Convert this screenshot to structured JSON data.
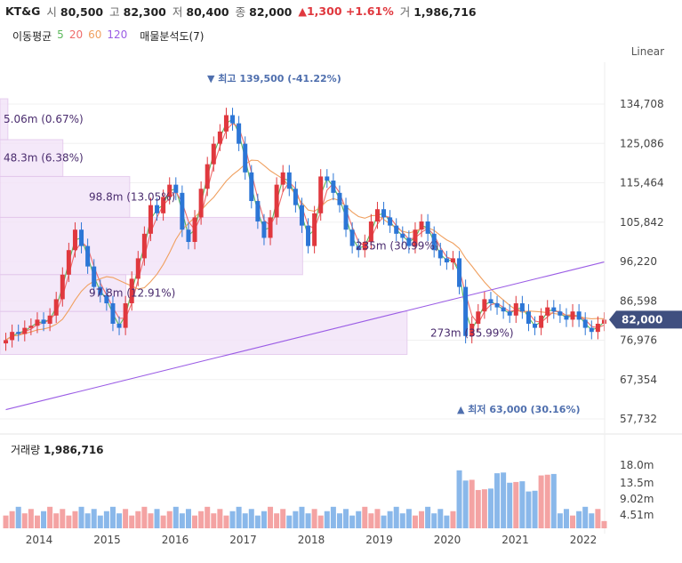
{
  "header": {
    "name": "KT&G",
    "open_label": "시",
    "open": "80,500",
    "high_label": "고",
    "high": "82,300",
    "low_label": "저",
    "low": "80,400",
    "close_label": "종",
    "close": "82,000",
    "change": "▲1,300 +1.61%",
    "vol_label": "거",
    "volume": "1,986,716"
  },
  "indicators": {
    "ma_label": "이동평균",
    "ma5": "5",
    "ma20": "20",
    "ma60": "60",
    "ma120": "120",
    "vp_label": "매물분석도(7)"
  },
  "scale_mode": "Linear",
  "colors": {
    "up": "#e0383e",
    "down": "#2c76d6",
    "ma5": "#5cb85c",
    "ma20": "#ef6b6b",
    "ma60": "#f0a060",
    "ma120": "#9b5de5",
    "badge": "#3f4f7f"
  },
  "chart_data": {
    "type": "candlestick",
    "interval": "monthly",
    "y_ticks": [
      "134,708",
      "125,086",
      "115,464",
      "105,842",
      "96,220",
      "86,598",
      "76,976",
      "67,354",
      "57,732"
    ],
    "y_range": [
      57732,
      134708
    ],
    "x_ticks": [
      "2014",
      "2015",
      "2016",
      "2017",
      "2018",
      "2019",
      "2020",
      "2021",
      "2022"
    ],
    "last_price": "82,000",
    "high_annotation": "최고 139,500 (-41.22%)",
    "low_annotation": "최저 63,000 (30.16%)",
    "volume_profile": [
      {
        "label": "5.06m (0.67%)",
        "lo": 126000,
        "hi": 136000,
        "frac": 0.02
      },
      {
        "label": "48.3m (6.38%)",
        "lo": 117000,
        "hi": 126000,
        "frac": 0.16
      },
      {
        "label": "98.8m (13.05%)",
        "lo": 107000,
        "hi": 117000,
        "frac": 0.33
      },
      {
        "label": "235m (30.99%)",
        "lo": 93000,
        "hi": 107000,
        "frac": 0.77
      },
      {
        "label": "97.8m (12.91%)",
        "lo": 84000,
        "hi": 93000,
        "frac": 0.32
      },
      {
        "label": "273m (35.99%)",
        "lo": 73500,
        "hi": 84000,
        "frac": 0.9
      }
    ],
    "closes": [
      77000,
      79000,
      78500,
      80000,
      80500,
      82000,
      81000,
      83000,
      87000,
      93000,
      99000,
      104000,
      100000,
      95000,
      90000,
      88000,
      86000,
      81000,
      80000,
      86000,
      92000,
      97000,
      103000,
      110000,
      108000,
      112000,
      115000,
      113000,
      104000,
      101000,
      107000,
      114000,
      120000,
      125000,
      128000,
      132000,
      130000,
      125000,
      118000,
      111000,
      106000,
      102000,
      107000,
      115000,
      118000,
      114000,
      110000,
      105000,
      100000,
      108000,
      117000,
      116000,
      113000,
      110000,
      104000,
      100000,
      99000,
      101000,
      106000,
      109000,
      107000,
      105000,
      103000,
      102000,
      100000,
      104000,
      106000,
      103000,
      99000,
      97000,
      96000,
      97000,
      90000,
      78000,
      81000,
      84000,
      87000,
      86000,
      85000,
      84000,
      83000,
      86000,
      84000,
      81000,
      80000,
      83000,
      85000,
      84000,
      83000,
      82000,
      84000,
      82000,
      80000,
      79000,
      81000,
      82000
    ],
    "volume_axis": [
      "18.0m",
      "13.5m",
      "9.02m",
      "4.51m"
    ],
    "volume_title": "거래량",
    "volume_value": "1,986,716"
  }
}
